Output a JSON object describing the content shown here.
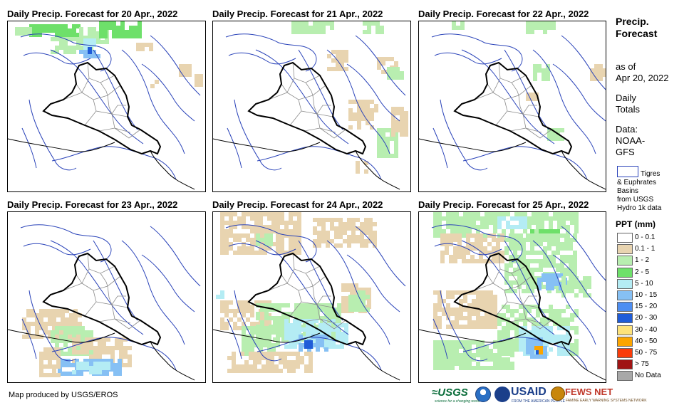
{
  "panels": [
    {
      "title": "Daily Precip. Forecast for 20 Apr., 2022"
    },
    {
      "title": "Daily Precip. Forecast for 21 Apr., 2022"
    },
    {
      "title": "Daily Precip. Forecast for 22 Apr., 2022"
    },
    {
      "title": "Daily Precip. Forecast for 23 Apr., 2022"
    },
    {
      "title": "Daily Precip. Forecast for 24 Apr., 2022"
    },
    {
      "title": "Daily Precip. Forecast for 25 Apr., 2022"
    }
  ],
  "sidebar": {
    "title_line1": "Precip.",
    "title_line2": "Forecast",
    "asof_line1": "as of",
    "asof_line2": "Apr 20, 2022",
    "daily_line1": "Daily",
    "daily_line2": "Totals",
    "data_line1": "Data:",
    "data_line2": "NOAA-",
    "data_line3": "GFS",
    "basin_line1": "Tigres",
    "basin_line2": "& Euphrates",
    "basin_line3": "Basins",
    "basin_line4": "from USGS",
    "basin_line5": "Hydro 1k data"
  },
  "legend": {
    "title": "PPT (mm)",
    "classes": [
      {
        "label": "0 - 0.1",
        "color": "#ffffff"
      },
      {
        "label": "0.1 - 1",
        "color": "#e8d4b0"
      },
      {
        "label": "1 - 2",
        "color": "#b8eeb0"
      },
      {
        "label": "2 - 5",
        "color": "#6ee06a"
      },
      {
        "label": "5 - 10",
        "color": "#b4ecf4"
      },
      {
        "label": "10 - 15",
        "color": "#86c0f4"
      },
      {
        "label": "15 - 20",
        "color": "#4d8ef2"
      },
      {
        "label": "20 - 30",
        "color": "#1f5cd8"
      },
      {
        "label": "30 - 40",
        "color": "#fde27a"
      },
      {
        "label": "40 - 50",
        "color": "#fca500"
      },
      {
        "label": "50 - 75",
        "color": "#fa3c0a"
      },
      {
        "label": "> 75",
        "color": "#a01414"
      },
      {
        "label": "No Data",
        "color": "#a8a8a8"
      }
    ]
  },
  "footer": {
    "credit": "Map produced by USGS/EROS",
    "logo_usgs": "≈USGS",
    "logo_usgs_tagline": "science for a changing world",
    "logo_usaid": "USAID",
    "logo_usaid_tagline": "FROM THE AMERICAN PEOPLE",
    "logo_fews": "FEWS NET",
    "logo_fews_tagline": "FAMINE EARLY WARNING SYSTEMS NETWORK"
  },
  "colors": {
    "basin_outline": "#2a43b9",
    "country_border": "#000000",
    "province_border": "#8c8c8c"
  }
}
